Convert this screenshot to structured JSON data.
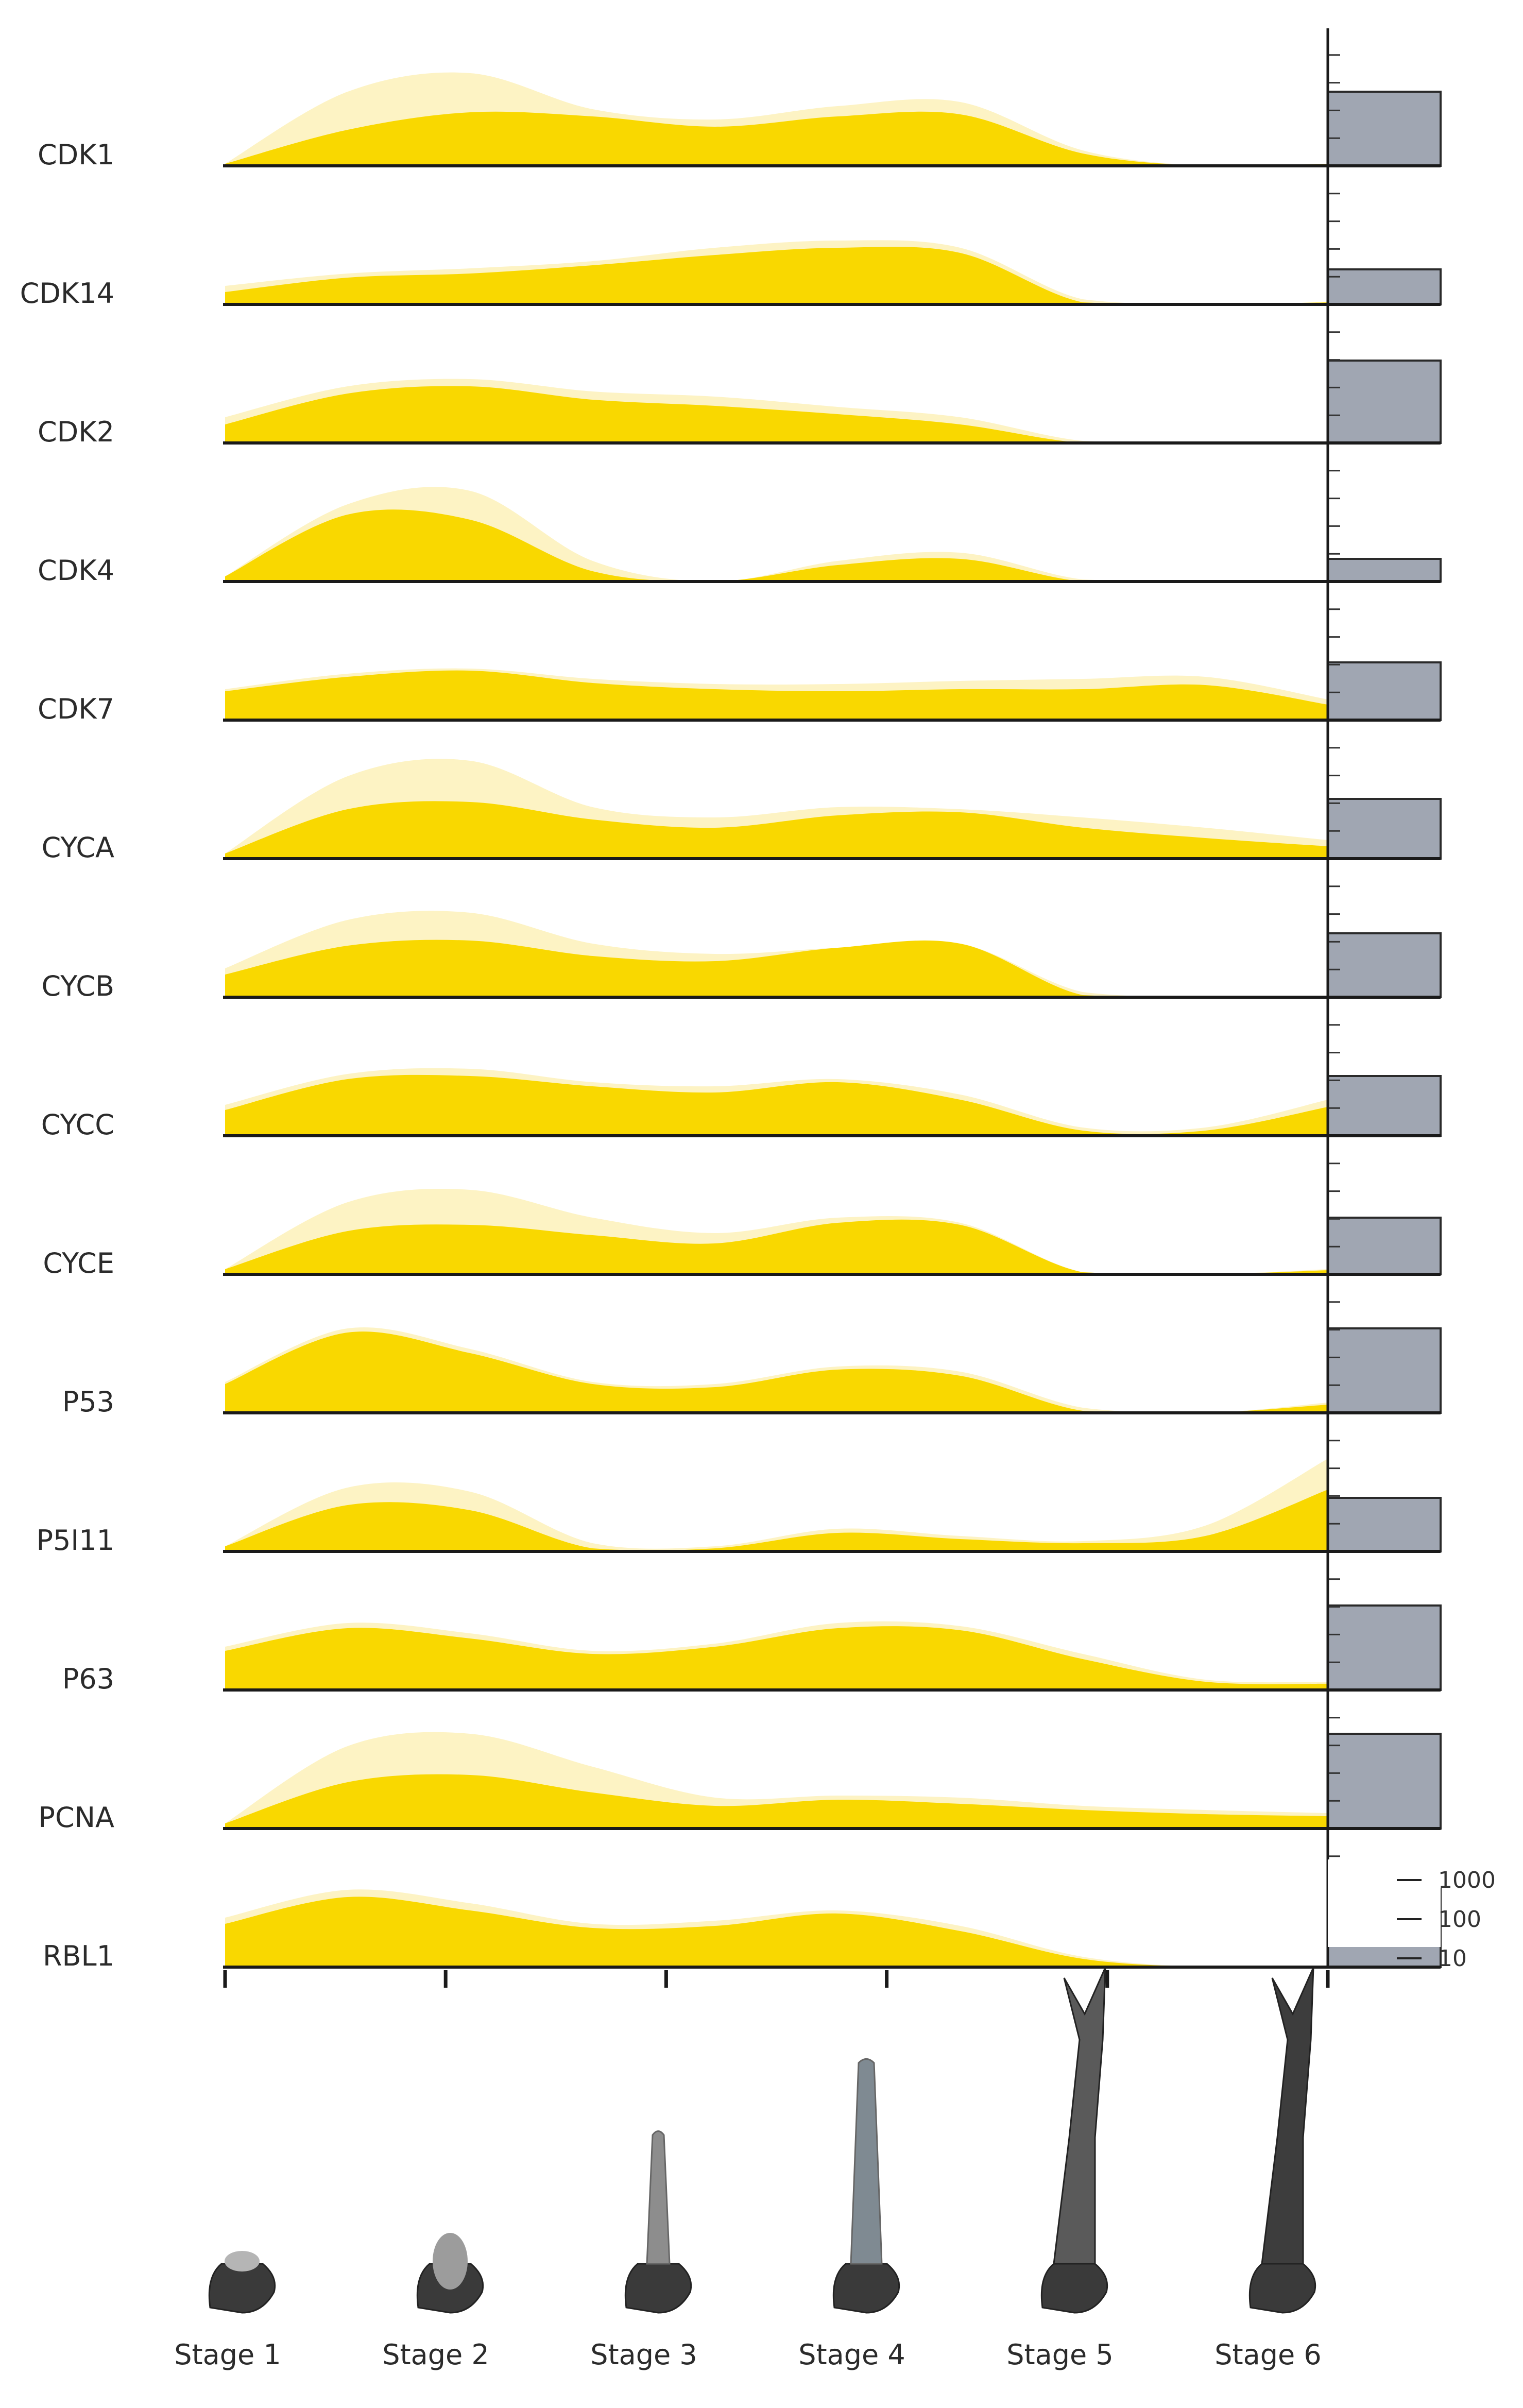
{
  "chart_data": {
    "type": "area",
    "x": [
      "Stage 1",
      "Stage 2",
      "Stage 3",
      "Stage 4",
      "Stage 5",
      "Stage 6"
    ],
    "stages": [
      "Stage 1",
      "Stage 2",
      "Stage 3",
      "Stage 4",
      "Stage 5",
      "Stage 6"
    ],
    "series_style": {
      "upper_color": "#fdf3c4",
      "lower_color": "#f9d800",
      "bar_color": "#a0a6b2"
    },
    "scale": {
      "type": "log",
      "ticks": [
        "1000",
        "100",
        "10"
      ],
      "tick_values": [
        1000,
        100,
        10
      ]
    },
    "genes": [
      {
        "name": "CDK1",
        "upper": [
          0.02,
          0.72,
          0.9,
          0.55,
          0.45,
          0.58,
          0.62,
          0.15,
          0.0,
          0.02
        ],
        "lower": [
          0.02,
          0.35,
          0.52,
          0.48,
          0.38,
          0.48,
          0.5,
          0.12,
          0.0,
          0.02
        ],
        "bar": 0.72
      },
      {
        "name": "CDK14",
        "upper": [
          0.18,
          0.3,
          0.35,
          0.42,
          0.55,
          0.62,
          0.55,
          0.05,
          0.0,
          0.02
        ],
        "lower": [
          0.12,
          0.26,
          0.3,
          0.38,
          0.48,
          0.55,
          0.5,
          0.02,
          0.0,
          0.02
        ],
        "bar": 0.34
      },
      {
        "name": "CDK2",
        "upper": [
          0.25,
          0.55,
          0.62,
          0.5,
          0.45,
          0.35,
          0.25,
          0.02,
          0.0,
          0.0
        ],
        "lower": [
          0.18,
          0.48,
          0.55,
          0.42,
          0.36,
          0.28,
          0.18,
          0.0,
          0.0,
          0.0
        ],
        "bar": 0.8
      },
      {
        "name": "CDK4",
        "upper": [
          0.05,
          0.75,
          0.88,
          0.2,
          0.0,
          0.2,
          0.28,
          0.02,
          0.0,
          0.0
        ],
        "lower": [
          0.05,
          0.65,
          0.6,
          0.1,
          0.0,
          0.16,
          0.22,
          0.0,
          0.0,
          0.0
        ],
        "bar": 0.22
      },
      {
        "name": "CDK7",
        "upper": [
          0.3,
          0.45,
          0.5,
          0.4,
          0.35,
          0.35,
          0.38,
          0.4,
          0.42,
          0.2
        ],
        "lower": [
          0.28,
          0.42,
          0.48,
          0.36,
          0.3,
          0.28,
          0.3,
          0.3,
          0.34,
          0.15
        ],
        "bar": 0.56
      },
      {
        "name": "CYCA",
        "upper": [
          0.05,
          0.8,
          0.95,
          0.5,
          0.4,
          0.5,
          0.48,
          0.4,
          0.3,
          0.18
        ],
        "lower": [
          0.05,
          0.48,
          0.55,
          0.38,
          0.3,
          0.42,
          0.45,
          0.3,
          0.2,
          0.12
        ],
        "bar": 0.58
      },
      {
        "name": "CYCB",
        "upper": [
          0.28,
          0.75,
          0.82,
          0.52,
          0.42,
          0.48,
          0.52,
          0.05,
          0.0,
          0.0
        ],
        "lower": [
          0.22,
          0.5,
          0.55,
          0.4,
          0.35,
          0.48,
          0.52,
          0.02,
          0.0,
          0.0
        ],
        "bar": 0.62
      },
      {
        "name": "CYCC",
        "upper": [
          0.3,
          0.6,
          0.65,
          0.52,
          0.48,
          0.55,
          0.4,
          0.08,
          0.08,
          0.35
        ],
        "lower": [
          0.25,
          0.55,
          0.58,
          0.48,
          0.42,
          0.52,
          0.35,
          0.05,
          0.05,
          0.28
        ],
        "bar": 0.58
      },
      {
        "name": "CYCE",
        "upper": [
          0.05,
          0.7,
          0.82,
          0.55,
          0.4,
          0.55,
          0.5,
          0.02,
          0.0,
          0.05
        ],
        "lower": [
          0.05,
          0.42,
          0.48,
          0.38,
          0.3,
          0.5,
          0.48,
          0.02,
          0.0,
          0.04
        ],
        "bar": 0.55
      },
      {
        "name": "P53",
        "upper": [
          0.3,
          0.82,
          0.62,
          0.3,
          0.28,
          0.45,
          0.4,
          0.05,
          0.0,
          0.1
        ],
        "lower": [
          0.28,
          0.78,
          0.58,
          0.28,
          0.25,
          0.42,
          0.36,
          0.02,
          0.0,
          0.08
        ],
        "bar": 0.82
      },
      {
        "name": "P5I11",
        "upper": [
          0.05,
          0.62,
          0.58,
          0.08,
          0.05,
          0.22,
          0.15,
          0.1,
          0.25,
          0.9
        ],
        "lower": [
          0.05,
          0.45,
          0.4,
          0.03,
          0.03,
          0.18,
          0.12,
          0.08,
          0.15,
          0.6
        ],
        "bar": 0.52
      },
      {
        "name": "P63",
        "upper": [
          0.42,
          0.65,
          0.55,
          0.38,
          0.45,
          0.65,
          0.62,
          0.35,
          0.1,
          0.08
        ],
        "lower": [
          0.38,
          0.6,
          0.5,
          0.35,
          0.42,
          0.6,
          0.58,
          0.3,
          0.08,
          0.06
        ],
        "bar": 0.82
      },
      {
        "name": "PCNA",
        "upper": [
          0.05,
          0.8,
          0.92,
          0.6,
          0.3,
          0.32,
          0.3,
          0.22,
          0.18,
          0.15
        ],
        "lower": [
          0.05,
          0.45,
          0.52,
          0.35,
          0.22,
          0.28,
          0.24,
          0.18,
          0.14,
          0.12
        ],
        "bar": 0.92
      },
      {
        "name": "RBL1",
        "upper": [
          0.48,
          0.75,
          0.62,
          0.42,
          0.45,
          0.55,
          0.4,
          0.1,
          0.0,
          0.0
        ],
        "lower": [
          0.42,
          0.68,
          0.55,
          0.38,
          0.4,
          0.52,
          0.35,
          0.08,
          0.0,
          0.0
        ],
        "bar": 0.76
      }
    ]
  }
}
